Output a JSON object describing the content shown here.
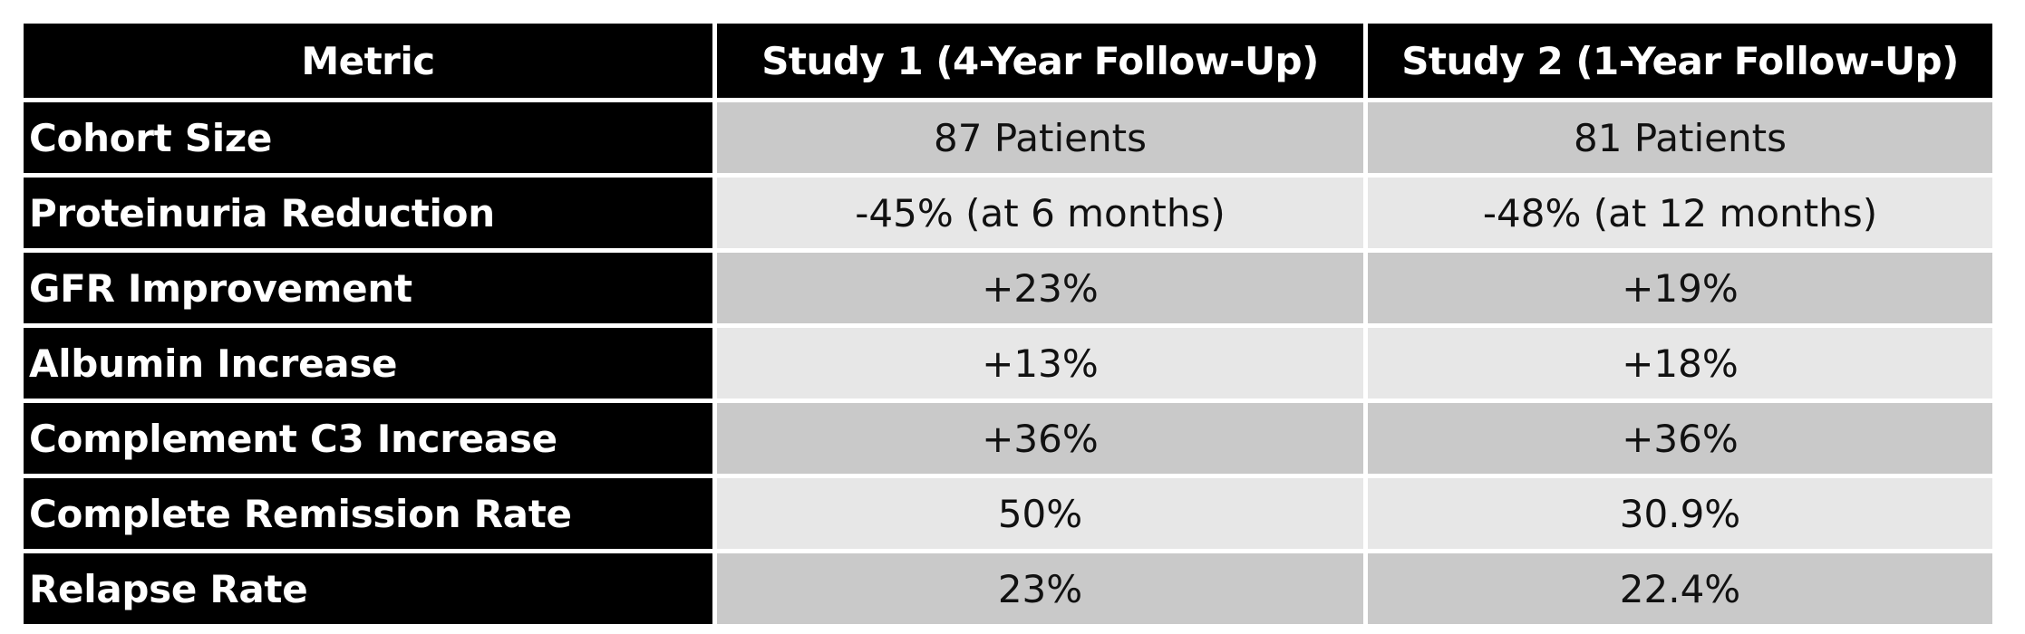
{
  "table": {
    "headers": [
      "Metric",
      "Study 1 (4-Year Follow-Up)",
      "Study 2 (1-Year Follow-Up)"
    ],
    "rows": [
      {
        "metric": "Cohort Size",
        "study1": "87 Patients",
        "study2": "81 Patients"
      },
      {
        "metric": "Proteinuria Reduction",
        "study1": "-45% (at 6 months)",
        "study2": "-48% (at 12 months)"
      },
      {
        "metric": "GFR Improvement",
        "study1": "+23%",
        "study2": "+19%"
      },
      {
        "metric": "Albumin Increase",
        "study1": "+13%",
        "study2": "+18%"
      },
      {
        "metric": "Complement C3 Increase",
        "study1": "+36%",
        "study2": "+36%"
      },
      {
        "metric": "Complete Remission Rate",
        "study1": "50%",
        "study2": "30.9%"
      },
      {
        "metric": "Relapse Rate",
        "study1": "23%",
        "study2": "22.4%"
      }
    ]
  },
  "colors": {
    "header_bg": "#000000",
    "header_text": "#ffffff",
    "row_shade_dark": "#c9c9c9",
    "row_shade_light": "#e7e7e7"
  }
}
